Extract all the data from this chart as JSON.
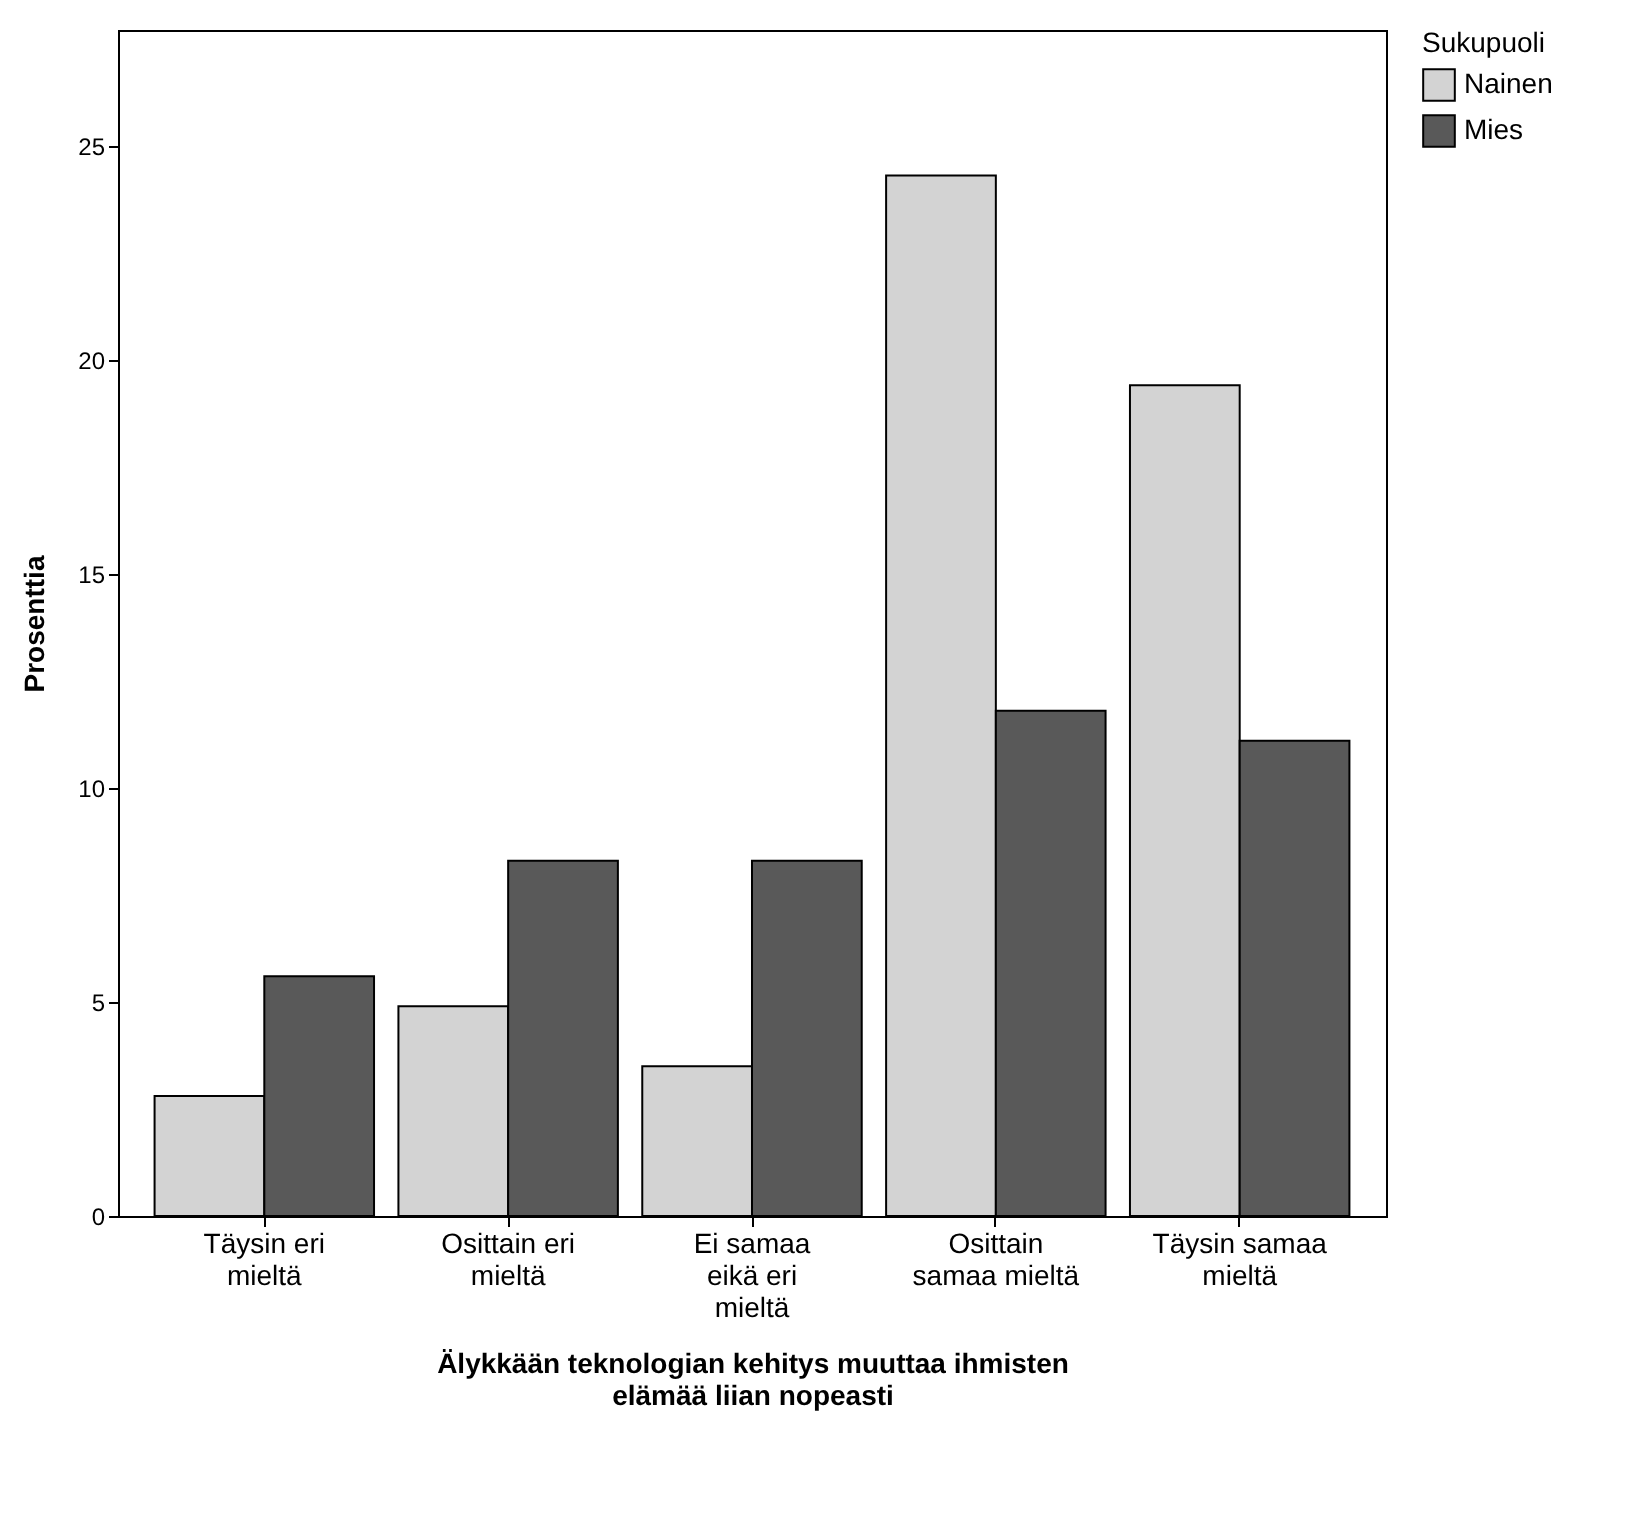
{
  "chart_data": {
    "type": "bar",
    "xlabel": "Älykkään teknologian kehitys muuttaa ihmisten elämää liian nopeasti",
    "ylabel": "Prosenttia",
    "legend_title": "Sukupuoli",
    "categories": [
      "Täysin eri mieltä",
      "Osittain eri mieltä",
      "Ei samaa eikä eri mieltä",
      "Osittain samaa mieltä",
      "Täysin samaa mieltä"
    ],
    "series": [
      {
        "name": "Nainen",
        "color": "#d3d3d3",
        "values": [
          2.8,
          4.9,
          3.5,
          24.3,
          19.4
        ]
      },
      {
        "name": "Mies",
        "color": "#595959",
        "values": [
          5.6,
          8.3,
          8.3,
          11.8,
          11.1
        ]
      }
    ],
    "ylim": [
      0,
      27.7
    ],
    "yticks": [
      0,
      5,
      10,
      15,
      20,
      25
    ],
    "grid": false,
    "legend": "top right"
  }
}
